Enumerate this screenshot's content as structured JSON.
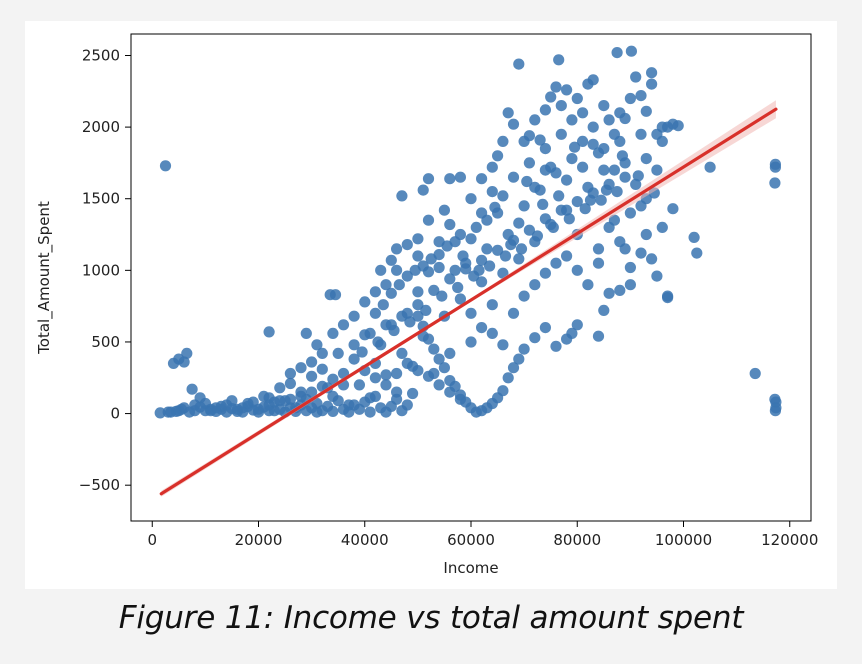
{
  "caption": "Figure 11: Income vs total amount spent",
  "colors": {
    "points": "#3a74b0",
    "regression_line": "#d8302a",
    "confidence_band": "#f1b7b3",
    "axes": "#000000"
  },
  "chart_data": {
    "type": "scatter",
    "title": "",
    "xlabel": "Income",
    "ylabel": "Total_Amount_Spent",
    "xlim": [
      -4000,
      124000
    ],
    "ylim": [
      -750,
      2650
    ],
    "xticks": [
      0,
      20000,
      40000,
      60000,
      80000,
      100000,
      120000
    ],
    "yticks": [
      -500,
      0,
      500,
      1000,
      1500,
      2000,
      2500
    ],
    "grid": false,
    "legend": "none",
    "regression": {
      "x": [
        1700,
        117400
      ],
      "y": [
        -560,
        2125
      ],
      "confidence_band": true
    },
    "points": [
      [
        2500,
        1730
      ],
      [
        1500,
        5
      ],
      [
        4000,
        350
      ],
      [
        5000,
        380
      ],
      [
        6500,
        420
      ],
      [
        6000,
        360
      ],
      [
        7500,
        170
      ],
      [
        3500,
        10
      ],
      [
        5000,
        20
      ],
      [
        6000,
        40
      ],
      [
        8000,
        60
      ],
      [
        9000,
        110
      ],
      [
        10000,
        70
      ],
      [
        11000,
        20
      ],
      [
        12000,
        40
      ],
      [
        13000,
        30
      ],
      [
        14000,
        60
      ],
      [
        15000,
        90
      ],
      [
        16000,
        30
      ],
      [
        17000,
        10
      ],
      [
        18000,
        50
      ],
      [
        19000,
        80
      ],
      [
        20000,
        30
      ],
      [
        21000,
        120
      ],
      [
        22000,
        60
      ],
      [
        23000,
        20
      ],
      [
        24000,
        180
      ],
      [
        25000,
        90
      ],
      [
        26000,
        210
      ],
      [
        27000,
        40
      ],
      [
        28000,
        150
      ],
      [
        29000,
        100
      ],
      [
        30000,
        260
      ],
      [
        31000,
        70
      ],
      [
        32000,
        310
      ],
      [
        33000,
        180
      ],
      [
        34000,
        120
      ],
      [
        35000,
        420
      ],
      [
        36000,
        280
      ],
      [
        37000,
        60
      ],
      [
        38000,
        380
      ],
      [
        39000,
        200
      ],
      [
        40000,
        550
      ],
      [
        41000,
        110
      ],
      [
        42000,
        350
      ],
      [
        43000,
        480
      ],
      [
        44000,
        270
      ],
      [
        45000,
        620
      ],
      [
        46000,
        150
      ],
      [
        47000,
        420
      ],
      [
        48000,
        700
      ],
      [
        49000,
        330
      ],
      [
        50000,
        850
      ],
      [
        51000,
        540
      ],
      [
        52000,
        990
      ],
      [
        53000,
        280
      ],
      [
        54000,
        1020
      ],
      [
        55000,
        680
      ],
      [
        56000,
        420
      ],
      [
        57000,
        1200
      ],
      [
        58000,
        800
      ],
      [
        59000,
        1050
      ],
      [
        60000,
        500
      ],
      [
        61000,
        1300
      ],
      [
        62000,
        920
      ],
      [
        63000,
        1150
      ],
      [
        64000,
        760
      ],
      [
        65000,
        1400
      ],
      [
        66000,
        980
      ],
      [
        67000,
        1250
      ],
      [
        68000,
        1650
      ],
      [
        69000,
        1080
      ],
      [
        70000,
        1450
      ],
      [
        71000,
        1750
      ],
      [
        72000,
        1200
      ],
      [
        73000,
        1560
      ],
      [
        74000,
        1850
      ],
      [
        75000,
        1320
      ],
      [
        76000,
        1680
      ],
      [
        77000,
        1950
      ],
      [
        78000,
        1420
      ],
      [
        79000,
        1780
      ],
      [
        80000,
        1250
      ],
      [
        81000,
        2100
      ],
      [
        82000,
        1580
      ],
      [
        83000,
        1880
      ],
      [
        84000,
        1050
      ],
      [
        85000,
        1700
      ],
      [
        86000,
        2050
      ],
      [
        87000,
        1350
      ],
      [
        88000,
        1900
      ],
      [
        89000,
        1150
      ],
      [
        90000,
        2200
      ],
      [
        91000,
        1600
      ],
      [
        92000,
        1950
      ],
      [
        93000,
        1250
      ],
      [
        94000,
        2300
      ],
      [
        95000,
        1700
      ],
      [
        96000,
        2000
      ],
      [
        97000,
        810
      ],
      [
        87500,
        2520
      ],
      [
        90200,
        2530
      ],
      [
        69000,
        2440
      ],
      [
        76500,
        2470
      ],
      [
        105000,
        1720
      ],
      [
        102000,
        1230
      ],
      [
        102500,
        1120
      ],
      [
        117200,
        1610
      ],
      [
        117300,
        1720
      ],
      [
        117300,
        1740
      ],
      [
        117200,
        100
      ],
      [
        117400,
        80
      ],
      [
        117300,
        20
      ],
      [
        117400,
        40
      ],
      [
        113500,
        280
      ],
      [
        33500,
        830
      ],
      [
        34500,
        830
      ],
      [
        29000,
        560
      ],
      [
        22000,
        570
      ],
      [
        31000,
        480
      ],
      [
        46000,
        1150
      ],
      [
        47000,
        1520
      ],
      [
        52000,
        1640
      ],
      [
        51000,
        1560
      ],
      [
        56000,
        1640
      ],
      [
        58000,
        1650
      ],
      [
        50000,
        1220
      ],
      [
        43000,
        1000
      ],
      [
        45000,
        1070
      ],
      [
        55000,
        1420
      ],
      [
        62000,
        1640
      ],
      [
        64000,
        1720
      ],
      [
        65000,
        1800
      ],
      [
        67000,
        2100
      ],
      [
        68000,
        2020
      ],
      [
        71000,
        1940
      ],
      [
        73000,
        1910
      ],
      [
        74000,
        2120
      ],
      [
        75000,
        2210
      ],
      [
        76000,
        2280
      ],
      [
        78000,
        2260
      ],
      [
        80000,
        2200
      ],
      [
        82000,
        2300
      ],
      [
        83000,
        2330
      ],
      [
        85000,
        2150
      ],
      [
        88000,
        2100
      ],
      [
        89000,
        2060
      ],
      [
        91000,
        2350
      ],
      [
        92000,
        2220
      ],
      [
        93000,
        2110
      ],
      [
        94000,
        2380
      ],
      [
        95000,
        1950
      ],
      [
        96000,
        1900
      ],
      [
        97000,
        2000
      ],
      [
        98000,
        2020
      ],
      [
        99000,
        2010
      ],
      [
        98000,
        1430
      ],
      [
        93000,
        1500
      ],
      [
        90000,
        1020
      ],
      [
        92000,
        1120
      ],
      [
        94000,
        1080
      ],
      [
        95000,
        960
      ],
      [
        97000,
        820
      ],
      [
        88000,
        860
      ],
      [
        86000,
        840
      ],
      [
        85000,
        720
      ],
      [
        84000,
        540
      ],
      [
        80000,
        620
      ],
      [
        79000,
        560
      ],
      [
        78000,
        520
      ],
      [
        76000,
        470
      ],
      [
        74000,
        600
      ],
      [
        72000,
        530
      ],
      [
        70000,
        450
      ],
      [
        69000,
        380
      ],
      [
        68000,
        320
      ],
      [
        67000,
        250
      ],
      [
        66000,
        160
      ],
      [
        65000,
        110
      ],
      [
        64000,
        70
      ],
      [
        63000,
        40
      ],
      [
        62000,
        20
      ],
      [
        61000,
        10
      ],
      [
        60000,
        40
      ],
      [
        59000,
        80
      ],
      [
        58000,
        130
      ],
      [
        57000,
        190
      ],
      [
        56000,
        230
      ],
      [
        55000,
        320
      ],
      [
        54000,
        380
      ],
      [
        53000,
        450
      ],
      [
        52000,
        520
      ],
      [
        51000,
        610
      ],
      [
        50000,
        680
      ],
      [
        49000,
        140
      ],
      [
        48000,
        60
      ],
      [
        47000,
        20
      ],
      [
        46000,
        100
      ],
      [
        45000,
        50
      ],
      [
        44000,
        10
      ],
      [
        43000,
        40
      ],
      [
        42000,
        120
      ],
      [
        41000,
        10
      ],
      [
        40000,
        80
      ],
      [
        39000,
        30
      ],
      [
        38000,
        60
      ],
      [
        37000,
        10
      ],
      [
        36000,
        30
      ],
      [
        35000,
        90
      ],
      [
        34000,
        15
      ],
      [
        33000,
        50
      ],
      [
        32000,
        20
      ],
      [
        31000,
        10
      ],
      [
        30000,
        40
      ],
      [
        29000,
        20
      ],
      [
        28000,
        60
      ],
      [
        27000,
        15
      ],
      [
        26000,
        40
      ],
      [
        25000,
        10
      ],
      [
        24000,
        30
      ],
      [
        23000,
        80
      ],
      [
        22000,
        20
      ],
      [
        21000,
        45
      ],
      [
        20000,
        10
      ],
      [
        19000,
        25
      ],
      [
        18000,
        70
      ],
      [
        17000,
        40
      ],
      [
        16000,
        15
      ],
      [
        15000,
        35
      ],
      [
        14000,
        10
      ],
      [
        13000,
        50
      ],
      [
        12000,
        15
      ],
      [
        11000,
        30
      ],
      [
        10000,
        20
      ],
      [
        9000,
        45
      ],
      [
        8000,
        20
      ],
      [
        7000,
        10
      ],
      [
        5500,
        30
      ],
      [
        4500,
        15
      ],
      [
        3000,
        10
      ],
      [
        42000,
        700
      ],
      [
        43500,
        760
      ],
      [
        45000,
        840
      ],
      [
        46500,
        900
      ],
      [
        48000,
        960
      ],
      [
        49500,
        1000
      ],
      [
        51000,
        1030
      ],
      [
        52500,
        1080
      ],
      [
        54000,
        1110
      ],
      [
        55500,
        1170
      ],
      [
        57000,
        1000
      ],
      [
        58500,
        1100
      ],
      [
        60000,
        1220
      ],
      [
        61500,
        1000
      ],
      [
        63000,
        1350
      ],
      [
        64500,
        1440
      ],
      [
        66000,
        1520
      ],
      [
        67500,
        1180
      ],
      [
        69000,
        1330
      ],
      [
        70500,
        1620
      ],
      [
        72000,
        1580
      ],
      [
        73500,
        1460
      ],
      [
        75000,
        1720
      ],
      [
        76500,
        1520
      ],
      [
        78000,
        1630
      ],
      [
        79500,
        1860
      ],
      [
        81000,
        1720
      ],
      [
        82500,
        1490
      ],
      [
        84000,
        1820
      ],
      [
        85500,
        1560
      ],
      [
        87000,
        1700
      ],
      [
        88500,
        1800
      ],
      [
        90000,
        1400
      ],
      [
        91500,
        1660
      ],
      [
        93000,
        1780
      ],
      [
        94500,
        1540
      ],
      [
        96000,
        1300
      ],
      [
        38000,
        480
      ],
      [
        39500,
        430
      ],
      [
        41000,
        560
      ],
      [
        42500,
        500
      ],
      [
        44000,
        620
      ],
      [
        45500,
        580
      ],
      [
        47000,
        680
      ],
      [
        48500,
        640
      ],
      [
        50000,
        760
      ],
      [
        51500,
        720
      ],
      [
        53000,
        860
      ],
      [
        54500,
        820
      ],
      [
        56000,
        940
      ],
      [
        57500,
        880
      ],
      [
        59000,
        1010
      ],
      [
        60500,
        960
      ],
      [
        62000,
        1070
      ],
      [
        63500,
        1030
      ],
      [
        65000,
        1140
      ],
      [
        66500,
        1100
      ],
      [
        68000,
        1210
      ],
      [
        69500,
        1150
      ],
      [
        71000,
        1280
      ],
      [
        72500,
        1240
      ],
      [
        74000,
        1360
      ],
      [
        75500,
        1300
      ],
      [
        77000,
        1420
      ],
      [
        78500,
        1360
      ],
      [
        80000,
        1480
      ],
      [
        81500,
        1430
      ],
      [
        83000,
        1540
      ],
      [
        84500,
        1490
      ],
      [
        86000,
        1600
      ],
      [
        87500,
        1550
      ],
      [
        89000,
        1650
      ],
      [
        60000,
        700
      ],
      [
        62000,
        600
      ],
      [
        64000,
        560
      ],
      [
        66000,
        480
      ],
      [
        68000,
        700
      ],
      [
        70000,
        820
      ],
      [
        72000,
        900
      ],
      [
        74000,
        980
      ],
      [
        76000,
        1050
      ],
      [
        78000,
        1100
      ],
      [
        80000,
        1000
      ],
      [
        82000,
        900
      ],
      [
        84000,
        1150
      ],
      [
        86000,
        1300
      ],
      [
        88000,
        1200
      ],
      [
        90000,
        900
      ],
      [
        92000,
        1450
      ],
      [
        70000,
        1900
      ],
      [
        72000,
        2050
      ],
      [
        74000,
        1700
      ],
      [
        77000,
        2150
      ],
      [
        79000,
        2050
      ],
      [
        81000,
        1900
      ],
      [
        83000,
        2000
      ],
      [
        85000,
        1850
      ],
      [
        87000,
        1950
      ],
      [
        89000,
        1750
      ],
      [
        66000,
        1900
      ],
      [
        64000,
        1550
      ],
      [
        62000,
        1400
      ],
      [
        60000,
        1500
      ],
      [
        58000,
        1250
      ],
      [
        56000,
        1320
      ],
      [
        54000,
        1200
      ],
      [
        52000,
        1350
      ],
      [
        50000,
        1100
      ],
      [
        48000,
        1180
      ],
      [
        46000,
        1000
      ],
      [
        44000,
        900
      ],
      [
        42000,
        850
      ],
      [
        40000,
        780
      ],
      [
        38000,
        680
      ],
      [
        36000,
        620
      ],
      [
        34000,
        560
      ],
      [
        32000,
        420
      ],
      [
        30000,
        360
      ],
      [
        28000,
        320
      ],
      [
        26000,
        280
      ],
      [
        40000,
        300
      ],
      [
        42000,
        250
      ],
      [
        44000,
        200
      ],
      [
        46000,
        280
      ],
      [
        48000,
        350
      ],
      [
        50000,
        300
      ],
      [
        52000,
        260
      ],
      [
        54000,
        200
      ],
      [
        56000,
        150
      ],
      [
        58000,
        100
      ],
      [
        36000,
        200
      ],
      [
        34000,
        240
      ],
      [
        32000,
        190
      ],
      [
        30000,
        150
      ],
      [
        28000,
        120
      ],
      [
        26000,
        100
      ],
      [
        24000,
        90
      ],
      [
        22000,
        110
      ]
    ]
  }
}
